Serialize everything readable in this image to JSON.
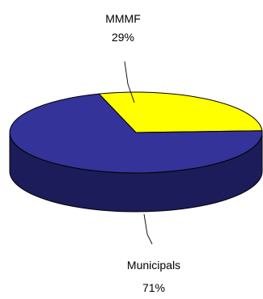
{
  "chart_data": {
    "type": "pie",
    "style": "3d",
    "slices": [
      {
        "label": "MMMF",
        "percent_label": "29%",
        "value": 29,
        "color": "#ffff00"
      },
      {
        "label": "Municipals",
        "percent_label": "71%",
        "value": 71,
        "color": "#333399"
      }
    ],
    "colors": {
      "side": "#1c1c5a",
      "outline": "#000000",
      "background": "#ffffff"
    },
    "legend": "none"
  }
}
